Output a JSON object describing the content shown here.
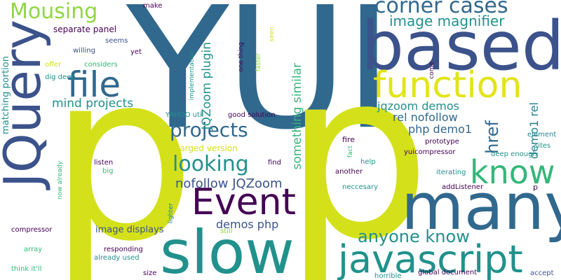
{
  "palette": {
    "background": "#ffffff",
    "dark_purple": "#440154",
    "indigo": "#3b528b",
    "blue": "#31688e",
    "teal": "#21918c",
    "cyan": "#26828e",
    "green": "#35b779",
    "light_green": "#5ec962",
    "lime": "#90d743",
    "yellow": "#d4e11a",
    "bright_yellow": "#e2e418"
  },
  "words": [
    {
      "id": "yui",
      "text": "YUI"
    },
    {
      "id": "p-left",
      "text": "p"
    },
    {
      "id": "p-right",
      "text": "p"
    },
    {
      "id": "jquery",
      "text": "JQuery"
    },
    {
      "id": "based",
      "text": "based"
    },
    {
      "id": "many",
      "text": "many"
    },
    {
      "id": "slow",
      "text": "slow"
    },
    {
      "id": "function",
      "text": "function"
    },
    {
      "id": "javascript",
      "text": "javascript"
    },
    {
      "id": "event",
      "text": "Event"
    },
    {
      "id": "file",
      "text": "file"
    },
    {
      "id": "know",
      "text": "know"
    },
    {
      "id": "corner-cases",
      "text": "corner cases"
    },
    {
      "id": "mousing",
      "text": "Mousing"
    },
    {
      "id": "projects",
      "text": "projects"
    },
    {
      "id": "looking",
      "text": "looking"
    },
    {
      "id": "anyone-know",
      "text": "anyone know"
    },
    {
      "id": "image-magnifier",
      "text": "image magnifier"
    },
    {
      "id": "jqzoom-plugin",
      "text": "JQZoom plugin"
    },
    {
      "id": "something-similar",
      "text": "something similar"
    },
    {
      "id": "href",
      "text": "href"
    },
    {
      "id": "nofollow-jqzoom",
      "text": "nofollow JQZoom"
    },
    {
      "id": "mind-projects",
      "text": "mind projects"
    },
    {
      "id": "demos-php",
      "text": "demos php"
    },
    {
      "id": "jqzoom-demos",
      "text": "jqzoom demos"
    },
    {
      "id": "rel-nofollow",
      "text": "rel nofollow"
    },
    {
      "id": "php-demo1",
      "text": "php demo1"
    },
    {
      "id": "demo1-rel",
      "text": "demo1 rel"
    },
    {
      "id": "separate-panel",
      "text": "separate panel"
    },
    {
      "id": "image-displays",
      "text": "image displays"
    },
    {
      "id": "matching-portion",
      "text": "matching portion"
    },
    {
      "id": "enlarged-version",
      "text": "enlarged version"
    },
    {
      "id": "yahoo-util",
      "text": "YAHOO util"
    },
    {
      "id": "good-solution",
      "text": "good solution"
    },
    {
      "id": "implementation",
      "text": "implementation"
    },
    {
      "id": "one-thing",
      "text": "one thing"
    },
    {
      "id": "faster",
      "text": "faster"
    },
    {
      "id": "seen",
      "text": "seen"
    },
    {
      "id": "dig-deep",
      "text": "dig deep"
    },
    {
      "id": "offer",
      "text": "offer"
    },
    {
      "id": "considers",
      "text": "considers"
    },
    {
      "id": "willing",
      "text": "willing"
    },
    {
      "id": "seems",
      "text": "seems"
    },
    {
      "id": "yet",
      "text": "yet"
    },
    {
      "id": "make",
      "text": "make"
    },
    {
      "id": "now-already",
      "text": "now already"
    },
    {
      "id": "listen",
      "text": "listen"
    },
    {
      "id": "big",
      "text": "big"
    },
    {
      "id": "find",
      "text": "find"
    },
    {
      "id": "lighter",
      "text": "lighter"
    },
    {
      "id": "still",
      "text": "still"
    },
    {
      "id": "compressor",
      "text": "compressor"
    },
    {
      "id": "array",
      "text": "array"
    },
    {
      "id": "think-itll",
      "text": "think it'll"
    },
    {
      "id": "responding",
      "text": "responding"
    },
    {
      "id": "already-used",
      "text": "already used"
    },
    {
      "id": "size",
      "text": "size"
    },
    {
      "id": "fire",
      "text": "fire"
    },
    {
      "id": "fact",
      "text": "fact"
    },
    {
      "id": "help",
      "text": "help"
    },
    {
      "id": "another",
      "text": "another"
    },
    {
      "id": "neccesary",
      "text": "neccesary"
    },
    {
      "id": "prototype",
      "text": "prototype"
    },
    {
      "id": "yuicompressor",
      "text": "yuicompressor"
    },
    {
      "id": "element",
      "text": "element"
    },
    {
      "id": "sites",
      "text": "sites"
    },
    {
      "id": "deep-enough",
      "text": "deep enough"
    },
    {
      "id": "iterating",
      "text": "iterating"
    },
    {
      "id": "come",
      "text": "come"
    },
    {
      "id": "addlistener",
      "text": "addListener"
    },
    {
      "id": "p-small",
      "text": "p"
    },
    {
      "id": "horrible",
      "text": "horrible"
    },
    {
      "id": "global-document",
      "text": "global document"
    },
    {
      "id": "accept",
      "text": "accept"
    }
  ]
}
